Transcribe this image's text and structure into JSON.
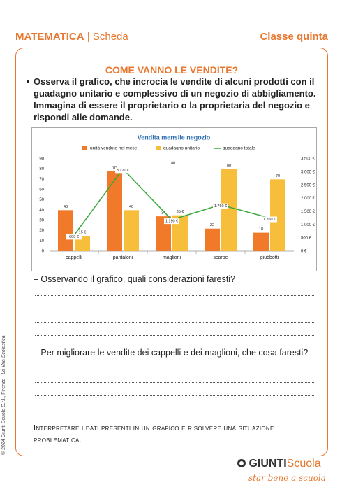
{
  "header": {
    "subject": "MATEMATICA",
    "separator": "|",
    "sheet": "Scheda",
    "grade": "Classe quinta"
  },
  "title": "COME VANNO LE VENDITE?",
  "instruction": "Osserva il grafico, che incrocia le vendite di alcuni prodotti con il guadagno unitario e complessivo di un negozio di abbigliamento. Immagina di essere il proprietario o la proprietaria del negozio e rispondi alle domande.",
  "chart_data": {
    "type": "bar",
    "title": "Vendita mensile negozio",
    "categories": [
      "cappelli",
      "pantaloni",
      "maglioni",
      "scarpe",
      "giubbotti"
    ],
    "series": [
      {
        "name": "unità vendute nel mese",
        "color": "#f07a2a",
        "values": [
          40,
          78,
          34,
          22,
          18
        ]
      },
      {
        "name": "guadagno unitario",
        "color": "#f6be3a",
        "values": [
          15,
          40,
          35,
          80,
          70
        ],
        "value_labels": [
          "15 €",
          "40",
          "35 €",
          "80",
          "70"
        ]
      },
      {
        "name": "guadagno totale",
        "color": "#3aa63a",
        "type": "line",
        "axis": "y2",
        "values": [
          600,
          3120,
          1190,
          1760,
          1260
        ],
        "value_labels": [
          "600 €",
          "3.120 €",
          "1.190 €",
          "1.760 €",
          "1.260 €"
        ]
      }
    ],
    "ylim": [
      0,
      90
    ],
    "yticks": [
      0,
      10,
      20,
      30,
      40,
      50,
      60,
      70,
      80,
      90
    ],
    "y2lim": [
      0,
      3500
    ],
    "y2ticks": [
      {
        "value": 0,
        "label": "0 €"
      },
      {
        "value": 500,
        "label": "500 €"
      },
      {
        "value": 1000,
        "label": "1.000 €"
      },
      {
        "value": 1500,
        "label": "1.500 €"
      },
      {
        "value": 2000,
        "label": "2.000 €"
      },
      {
        "value": 2500,
        "label": "2.500 €"
      },
      {
        "value": 3000,
        "label": "3.000 €"
      },
      {
        "value": 3500,
        "label": "3.500 €"
      }
    ],
    "annotations": [
      "40"
    ],
    "grid": false
  },
  "questions": [
    "– Osservando il grafico, quali considerazioni faresti?",
    "– Per migliorare le vendite dei cappelli e dei maglioni, che cosa faresti?"
  ],
  "objective": "Interpretare i dati presenti in un grafico e risolvere una situazione problematica.",
  "footer": {
    "brand": "GIUNTI",
    "brand_sub": "Scuola",
    "tagline": "star bene a scuola"
  },
  "copyright": {
    "text": "© 2024 Giunti Scuola S.r.l., Firenze |",
    "magazine": "La Vita Scolastica"
  }
}
